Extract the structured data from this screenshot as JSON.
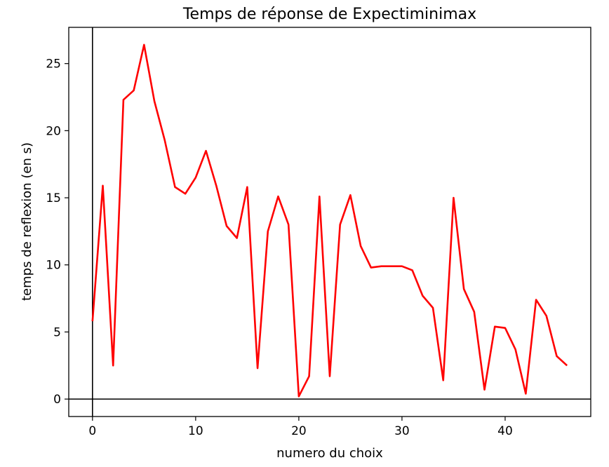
{
  "chart_data": {
    "type": "line",
    "title": "Temps de réponse de Expectiminimax",
    "xlabel": "numero du choix",
    "ylabel": "temps de reflexion (en s)",
    "xlim": [
      -2.3,
      48.3
    ],
    "ylim": [
      -1.3,
      27.7
    ],
    "x_ticks": [
      0,
      10,
      20,
      30,
      40
    ],
    "y_ticks": [
      0,
      5,
      10,
      15,
      20,
      25
    ],
    "x_tick_labels": [
      "0",
      "10",
      "20",
      "30",
      "40"
    ],
    "y_tick_labels": [
      "0",
      "5",
      "10",
      "15",
      "20",
      "25"
    ],
    "grid": false,
    "reference_lines": {
      "x": 0,
      "y": 0,
      "color": "#000000"
    },
    "series": [
      {
        "color": "#ff0000",
        "x": [
          0,
          1,
          2,
          3,
          4,
          5,
          6,
          7,
          8,
          9,
          10,
          11,
          12,
          13,
          14,
          15,
          16,
          17,
          18,
          19,
          20,
          21,
          22,
          23,
          24,
          25,
          26,
          27,
          28,
          29,
          30,
          31,
          32,
          33,
          34,
          35,
          36,
          37,
          38,
          39,
          40,
          41,
          42,
          43,
          44,
          45,
          46
        ],
        "y": [
          5.8,
          15.9,
          2.5,
          22.3,
          23.0,
          26.4,
          22.2,
          19.3,
          15.8,
          15.3,
          16.5,
          18.5,
          15.9,
          12.9,
          12.0,
          15.8,
          2.3,
          12.5,
          15.1,
          13.0,
          0.2,
          1.7,
          15.1,
          1.7,
          13.0,
          15.2,
          11.4,
          9.8,
          9.9,
          9.9,
          9.9,
          9.6,
          7.7,
          6.8,
          1.4,
          15.0,
          8.2,
          6.5,
          0.7,
          5.4,
          5.3,
          3.7,
          0.4,
          7.4,
          6.2,
          3.2,
          2.5
        ]
      }
    ]
  }
}
